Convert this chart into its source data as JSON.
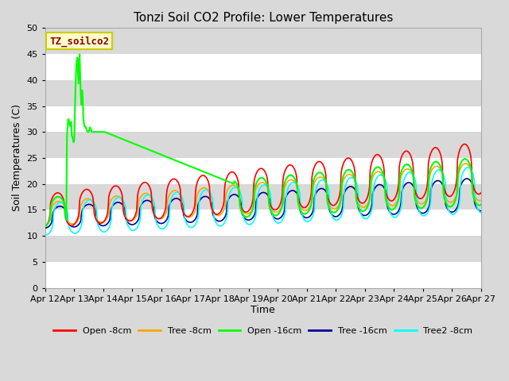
{
  "title": "Tonzi Soil CO2 Profile: Lower Temperatures",
  "xlabel": "Time",
  "ylabel": "Soil Temperatures (C)",
  "ylim": [
    0,
    50
  ],
  "yticks": [
    0,
    5,
    10,
    15,
    20,
    25,
    30,
    35,
    40,
    45,
    50
  ],
  "x_labels": [
    "Apr 12",
    "Apr 13",
    "Apr 14",
    "Apr 15",
    "Apr 16",
    "Apr 17",
    "Apr 18",
    "Apr 19",
    "Apr 20",
    "Apr 21",
    "Apr 22",
    "Apr 23",
    "Apr 24",
    "Apr 25",
    "Apr 26",
    "Apr 27"
  ],
  "background_color": "#d9d9d9",
  "plot_bg_color": "#d9d9d9",
  "legend_items": [
    {
      "label": "Open -8cm",
      "color": "#ff0000"
    },
    {
      "label": "Tree -8cm",
      "color": "#ffa500"
    },
    {
      "label": "Open -16cm",
      "color": "#00ff00"
    },
    {
      "label": "Tree -16cm",
      "color": "#000099"
    },
    {
      "label": "Tree2 -8cm",
      "color": "#00ffff"
    }
  ],
  "annotation_text": "TZ_soilco2",
  "annotation_color": "#8b0000",
  "annotation_bg": "#ffffcc",
  "annotation_border": "#cccc00"
}
